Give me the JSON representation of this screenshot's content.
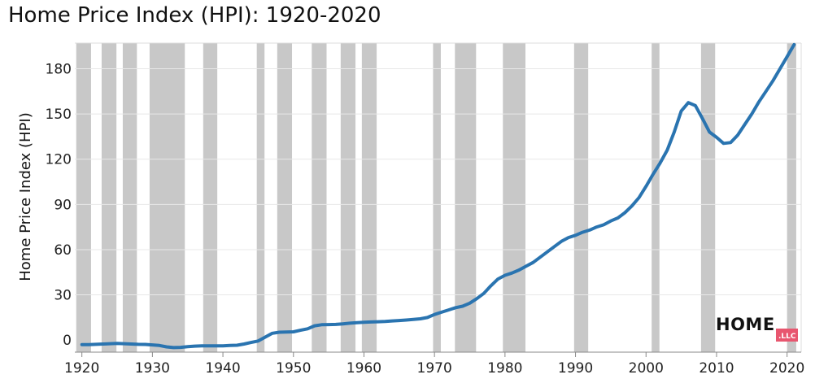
{
  "chart_data": {
    "type": "line",
    "title": "Home Price Index (HPI): 1920-2020",
    "xlabel": "",
    "ylabel": "Home Price Index (HPI)",
    "xlim": [
      1919,
      2022
    ],
    "ylim": [
      -8,
      197
    ],
    "x_ticks": [
      1920,
      1930,
      1940,
      1950,
      1960,
      1970,
      1980,
      1990,
      2000,
      2010,
      2020
    ],
    "y_ticks": [
      0,
      30,
      60,
      90,
      120,
      150,
      180
    ],
    "grid": "horizontal",
    "colors": {
      "line": "#2a74b0",
      "recession": "#c8c8c8",
      "grid": "#e8e8e8"
    },
    "recession_periods": [
      [
        1919.2,
        1921.3
      ],
      [
        1922.8,
        1924.9
      ],
      [
        1925.8,
        1927.8
      ],
      [
        1929.6,
        1934.6
      ],
      [
        1937.2,
        1939.2
      ],
      [
        1944.8,
        1945.9
      ],
      [
        1947.7,
        1949.8
      ],
      [
        1952.6,
        1954.7
      ],
      [
        1956.7,
        1958.8
      ],
      [
        1959.7,
        1961.8
      ],
      [
        1969.8,
        1970.9
      ],
      [
        1972.9,
        1975.9
      ],
      [
        1979.7,
        1982.9
      ],
      [
        1989.8,
        1991.8
      ],
      [
        2000.8,
        2001.9
      ],
      [
        2007.8,
        2009.8
      ],
      [
        2020.0,
        2021.3
      ]
    ],
    "series": [
      {
        "x": [
          1920,
          1921,
          1922,
          1923,
          1924,
          1925,
          1926,
          1927,
          1928,
          1929,
          1930,
          1931,
          1932,
          1933,
          1934,
          1935,
          1936,
          1937,
          1938,
          1939,
          1940,
          1941,
          1942,
          1943,
          1944,
          1945,
          1946,
          1947,
          1948,
          1949,
          1950,
          1951,
          1952,
          1953,
          1954,
          1955,
          1956,
          1957,
          1958,
          1959,
          1960,
          1961,
          1962,
          1963,
          1964,
          1965,
          1966,
          1967,
          1968,
          1969,
          1970,
          1971,
          1972,
          1973,
          1974,
          1975,
          1976,
          1977,
          1978,
          1979,
          1980,
          1981,
          1982,
          1983,
          1984,
          1985,
          1986,
          1987,
          1988,
          1989,
          1990,
          1991,
          1992,
          1993,
          1994,
          1995,
          1996,
          1997,
          1998,
          1999,
          2000,
          2001,
          2002,
          2003,
          2004,
          2005,
          2006,
          2007,
          2008,
          2009,
          2010,
          2011,
          2012,
          2013,
          2014,
          2015,
          2016,
          2017,
          2018,
          2019,
          2020,
          2021
        ],
        "values": [
          -3,
          -3,
          -2.8,
          -2.6,
          -2.4,
          -2.2,
          -2.4,
          -2.6,
          -2.8,
          -2.9,
          -3.2,
          -3.6,
          -4.5,
          -5,
          -4.8,
          -4.4,
          -4,
          -3.8,
          -3.8,
          -3.8,
          -3.8,
          -3.6,
          -3.4,
          -2.6,
          -1.6,
          -0.6,
          2,
          4.5,
          5.2,
          5.3,
          5.5,
          6.5,
          7.5,
          9.5,
          10.2,
          10.3,
          10.4,
          10.8,
          11.2,
          11.6,
          11.8,
          12,
          12.2,
          12.4,
          12.7,
          13,
          13.3,
          13.7,
          14.1,
          15,
          17,
          18.5,
          20,
          21.5,
          22.5,
          24.5,
          27.5,
          31,
          36,
          40.5,
          43,
          44.5,
          46.5,
          49,
          51.5,
          55,
          58.5,
          62,
          65.5,
          68,
          69.5,
          71.5,
          73,
          75,
          76.5,
          79,
          81,
          84.5,
          89,
          94.5,
          102,
          110,
          117.5,
          126,
          138,
          152,
          157.5,
          155.5,
          147,
          138,
          134.5,
          130.5,
          131,
          136,
          143,
          150,
          158,
          165,
          172,
          180,
          188,
          196
        ]
      }
    ]
  },
  "logo": {
    "main": "HOME",
    "sub": ".LLC",
    "badge_color": "#e8566f"
  }
}
